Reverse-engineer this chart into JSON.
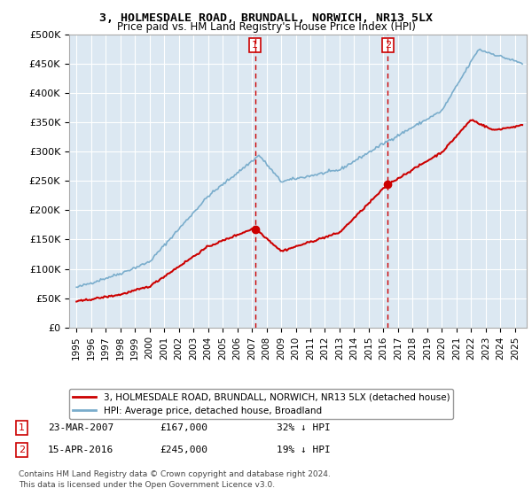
{
  "title": "3, HOLMESDALE ROAD, BRUNDALL, NORWICH, NR13 5LX",
  "subtitle": "Price paid vs. HM Land Registry's House Price Index (HPI)",
  "ylabel_ticks": [
    "£0",
    "£50K",
    "£100K",
    "£150K",
    "£200K",
    "£250K",
    "£300K",
    "£350K",
    "£400K",
    "£450K",
    "£500K"
  ],
  "ytick_values": [
    0,
    50000,
    100000,
    150000,
    200000,
    250000,
    300000,
    350000,
    400000,
    450000,
    500000
  ],
  "ylim": [
    0,
    500000
  ],
  "xlim_start": 1994.5,
  "xlim_end": 2025.8,
  "sale1_x": 2007.22,
  "sale1_y": 167000,
  "sale1_label": "1",
  "sale1_date": "23-MAR-2007",
  "sale1_price": "£167,000",
  "sale1_pct": "32% ↓ HPI",
  "sale2_x": 2016.29,
  "sale2_y": 245000,
  "sale2_label": "2",
  "sale2_date": "15-APR-2016",
  "sale2_price": "£245,000",
  "sale2_pct": "19% ↓ HPI",
  "line_color_price": "#cc0000",
  "line_color_hpi": "#7aadcc",
  "legend_label_price": "3, HOLMESDALE ROAD, BRUNDALL, NORWICH, NR13 5LX (detached house)",
  "legend_label_hpi": "HPI: Average price, detached house, Broadland",
  "footer1": "Contains HM Land Registry data © Crown copyright and database right 2024.",
  "footer2": "This data is licensed under the Open Government Licence v3.0.",
  "plot_bg_color": "#dce8f2"
}
